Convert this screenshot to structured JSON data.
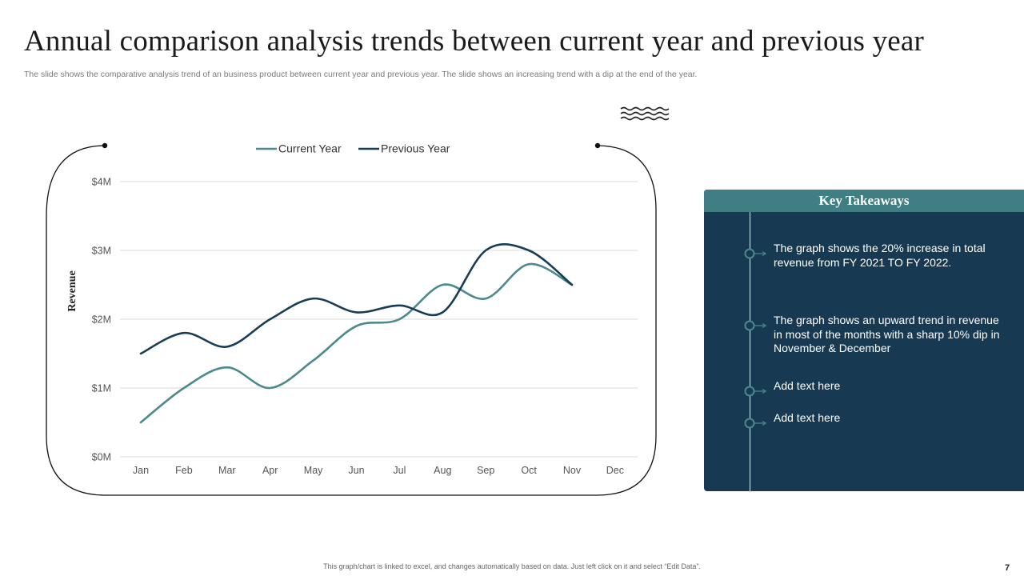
{
  "slide": {
    "title": "Annual comparison analysis trends between current year and previous year",
    "subtitle": "The slide shows the comparative analysis trend of an business product between current year and previous year. The slide shows an increasing trend with a dip at the end of the year.",
    "footnote": "This graph/chart is linked to excel, and changes automatically based on data. Just left click on it and select “Edit Data”.",
    "page_number": "7"
  },
  "colors": {
    "current_year": "#4a8a8c",
    "previous_year": "#163d55",
    "panel_bg": "#173a52",
    "panel_header": "#3f7f84"
  },
  "chart_data": {
    "type": "line",
    "title": "",
    "xlabel": "",
    "ylabel": "Revenue",
    "categories": [
      "Jan",
      "Feb",
      "Mar",
      "Apr",
      "May",
      "Jun",
      "Jul",
      "Aug",
      "Sep",
      "Oct",
      "Nov",
      "Dec"
    ],
    "series": [
      {
        "name": "Current Year",
        "values": [
          0.5,
          1.0,
          1.3,
          1.0,
          1.4,
          1.9,
          2.0,
          2.5,
          2.3,
          2.8,
          2.5,
          null
        ]
      },
      {
        "name": "Previous Year",
        "values": [
          1.5,
          1.8,
          1.6,
          2.0,
          2.3,
          2.1,
          2.2,
          2.1,
          3.0,
          3.0,
          2.5,
          null
        ]
      }
    ],
    "y_ticks": [
      0,
      1,
      2,
      3,
      4
    ],
    "y_tick_labels": [
      "$0M",
      "$1M",
      "$2M",
      "$3M",
      "$4M"
    ],
    "ylim": [
      0,
      4
    ],
    "grid": true,
    "legend": "top-center"
  },
  "takeaways": {
    "header": "Key Takeaways",
    "items": [
      "The graph shows the 20% increase in total revenue from FY 2021 TO FY 2022.",
      "The graph shows an upward trend in revenue in most of the months with a sharp 10% dip in November & December",
      "Add text here",
      "Add text here"
    ]
  }
}
